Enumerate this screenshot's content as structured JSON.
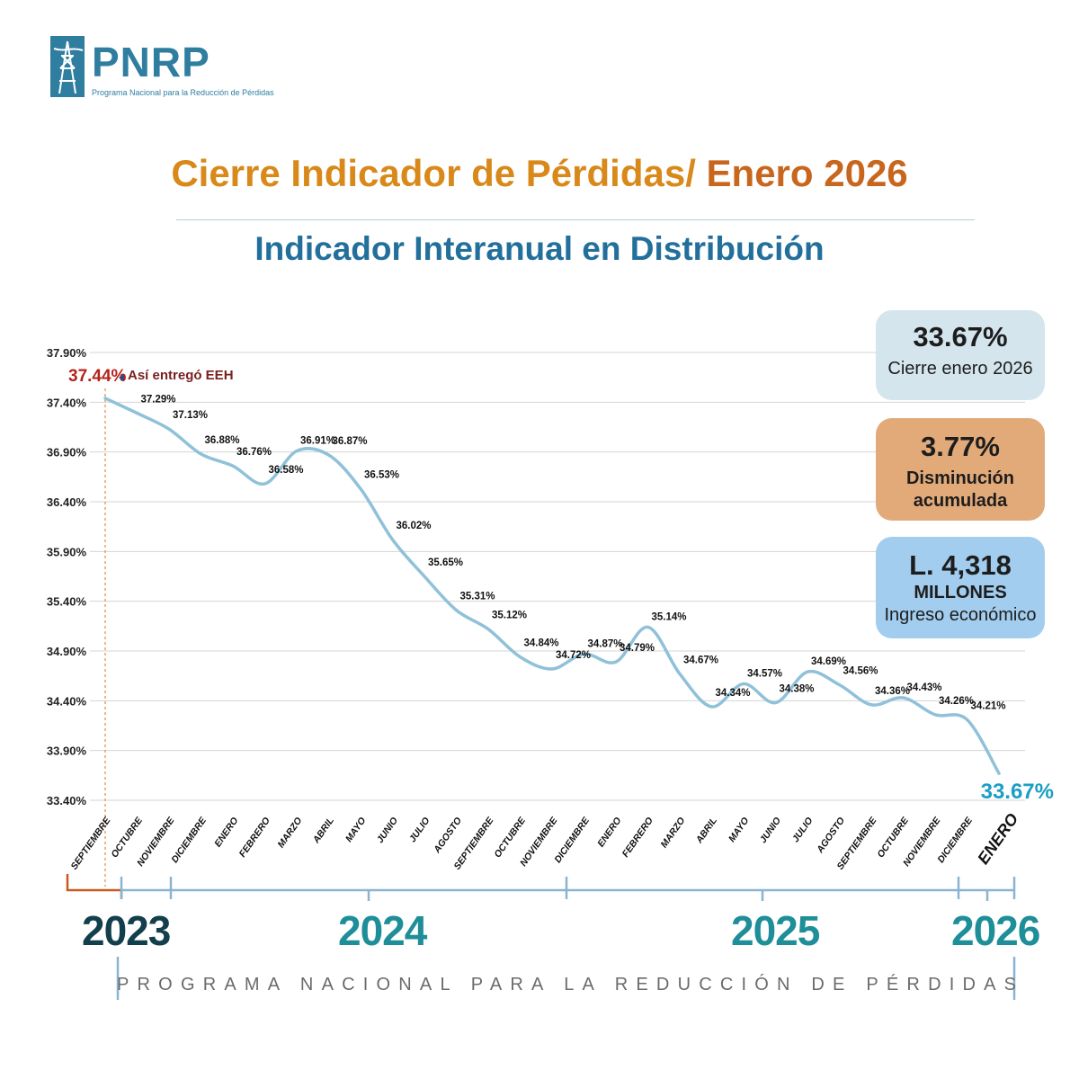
{
  "logo": {
    "name": "PNRP",
    "tagline": "Programa Nacional para la Reducción de Pérdidas"
  },
  "header": {
    "title_main": "Cierre Indicador de Pérdidas/",
    "title_year": " Enero 2026",
    "subtitle": "Indicador Interanual en Distribución"
  },
  "colors": {
    "line": "#8fc1d9",
    "title": "#d8891a",
    "subtitle": "#236f9c",
    "start_marker": "#b5221b",
    "end_value": "#1b9ec5",
    "axis_bracket": "#8ab4d2",
    "bracket_2023": "#c85a1e"
  },
  "cards": {
    "closing": {
      "value": "33.67%",
      "label": "Cierre enero 2026"
    },
    "decrease": {
      "value": "3.77%",
      "label_1": "Disminución",
      "label_2": "acumulada"
    },
    "income": {
      "value": "L. 4,318",
      "unit": "MILLONES",
      "label": "Ingreso económico"
    }
  },
  "annotation": {
    "start_value": "37.44%",
    "text": "Así entregó EEH"
  },
  "end_value_label": "33.67%",
  "years": [
    {
      "label": "2023",
      "color": "#123f4c"
    },
    {
      "label": "2024",
      "color": "#1e8e99"
    },
    {
      "label": "2025",
      "color": "#1e8e99"
    },
    {
      "label": "2026",
      "color": "#1e8e99"
    }
  ],
  "footer": "PROGRAMA NACIONAL PARA LA REDUCCIÓN DE PÉRDIDAS",
  "chart_data": {
    "type": "line",
    "title": "Indicador Interanual en Distribución",
    "xlabel": "",
    "ylabel": "",
    "ylim": [
      33.4,
      37.9
    ],
    "y_ticks": [
      "33.40%",
      "33.90%",
      "34.40%",
      "34.90%",
      "35.40%",
      "35.90%",
      "36.40%",
      "36.90%",
      "37.40%",
      "37.90%"
    ],
    "grid": true,
    "categories": [
      "SEPTIEMBRE",
      "OCTUBRE",
      "NOVIEMBRE",
      "DICIEMBRE",
      "ENERO",
      "FEBRERO",
      "MARZO",
      "ABRIL",
      "MAYO",
      "JUNIO",
      "JULIO",
      "AGOSTO",
      "SEPTIEMBRE",
      "OCTUBRE",
      "NOVIEMBRE",
      "DICIEMBRE",
      "ENERO",
      "FEBRERO",
      "MARZO",
      "ABRIL",
      "MAYO",
      "JUNIO",
      "JULIO",
      "AGOSTO",
      "SEPTIEMBRE",
      "OCTUBRE",
      "NOVIEMBRE",
      "DICIEMBRE",
      "ENERO"
    ],
    "values": [
      37.44,
      37.29,
      37.13,
      36.88,
      36.76,
      36.58,
      36.91,
      36.87,
      36.53,
      36.02,
      35.65,
      35.31,
      35.12,
      34.84,
      34.72,
      34.87,
      34.79,
      35.14,
      34.67,
      34.34,
      34.57,
      34.38,
      34.69,
      34.56,
      34.36,
      34.43,
      34.26,
      34.21,
      33.67
    ],
    "data_labels": [
      "37.44%",
      "37.29%",
      "37.13%",
      "36.88%",
      "36.76%",
      "36.58%",
      "36.91%",
      "36.87%",
      "36.53%",
      "36.02%",
      "35.65%",
      "35.31%",
      "35.12%",
      "34.84%",
      "34.72%",
      "34.87%",
      "34.79%",
      "35.14%",
      "34.67%",
      "34.34%",
      "34.57%",
      "34.38%",
      "34.69%",
      "34.56%",
      "34.36%",
      "34.43%",
      "34.26%",
      "34.21%",
      "33.67%"
    ],
    "year_groups": [
      {
        "year": "2023",
        "from": 0,
        "to": 0
      },
      {
        "year": "2024",
        "from": 1,
        "to": 12
      },
      {
        "year": "2025",
        "from": 13,
        "to": 25
      },
      {
        "year": "2026",
        "from": 26,
        "to": 28
      }
    ]
  }
}
